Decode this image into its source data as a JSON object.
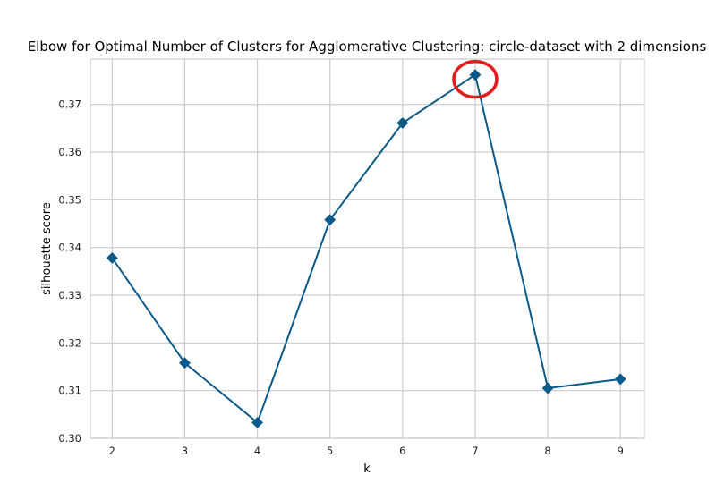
{
  "chart_data": {
    "type": "line",
    "title": "Elbow for Optimal Number of Clusters for Agglomerative Clustering: circle-dataset with 2 dimensions",
    "xlabel": "k",
    "ylabel": "silhouette score",
    "x": [
      2,
      3,
      4,
      5,
      6,
      7,
      8,
      9
    ],
    "series": [
      {
        "values": [
          0.3378,
          0.3158,
          0.3033,
          0.3458,
          0.3661,
          0.3762,
          0.3105,
          0.3124
        ]
      }
    ],
    "xticks": [
      "2",
      "3",
      "4",
      "5",
      "6",
      "7",
      "8",
      "9"
    ],
    "yticks": [
      "0.30",
      "0.31",
      "0.32",
      "0.33",
      "0.34",
      "0.35",
      "0.36",
      "0.37"
    ],
    "xlim": [
      1.7,
      9.33
    ],
    "ylim": [
      0.3,
      0.3795
    ],
    "grid": true,
    "marker": "diamond",
    "highlight": {
      "x": 7,
      "shape": "circle",
      "color": "#e41a1c"
    },
    "colors": {
      "line": "#0c5a8a",
      "grid": "#cccccc",
      "highlight": "#e41a1c"
    }
  }
}
